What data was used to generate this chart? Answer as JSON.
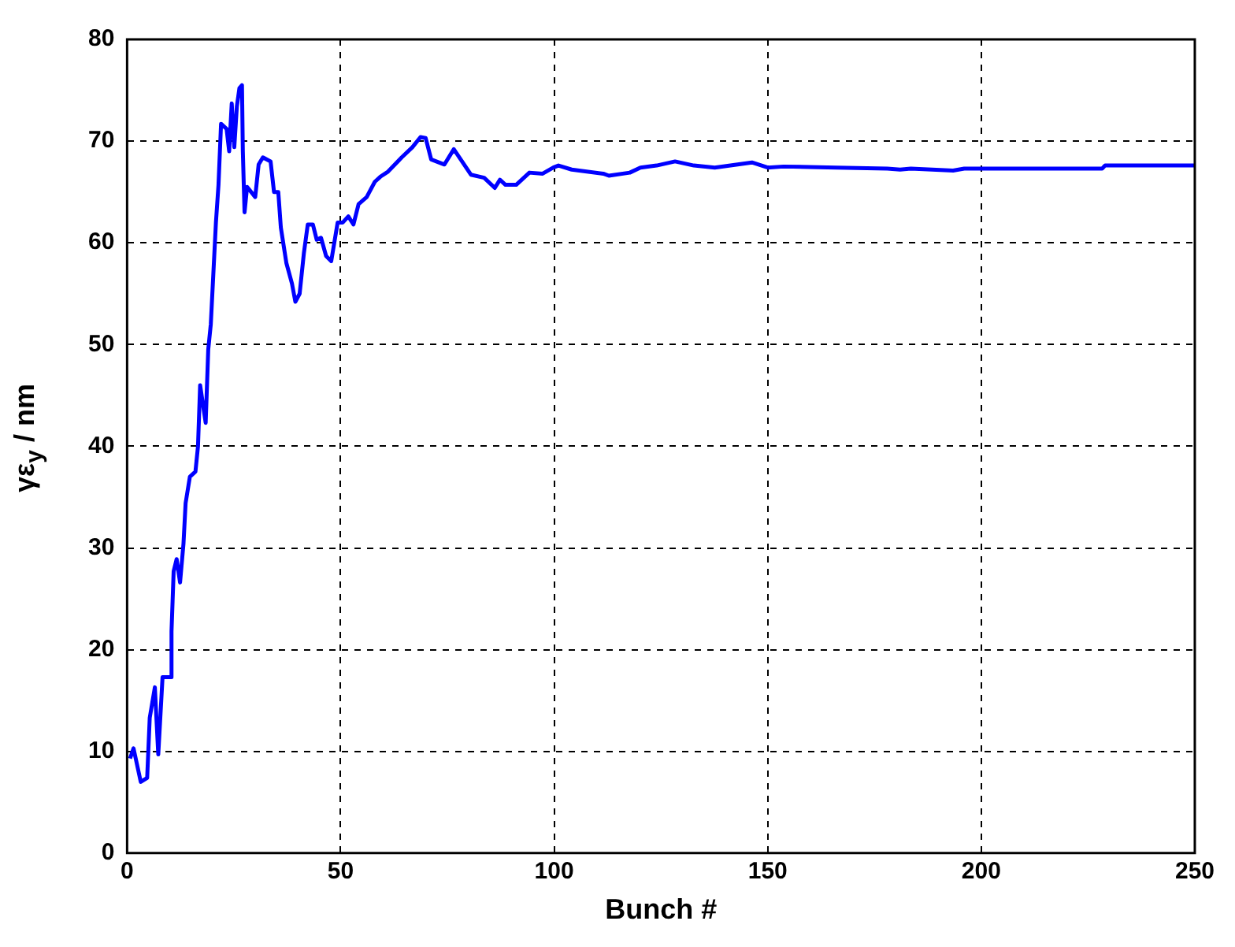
{
  "chart_data": {
    "type": "line",
    "xlabel": "Bunch #",
    "ylabel": "γε$_{y}$ / nm",
    "xlim": [
      0,
      250
    ],
    "xticks": [
      0,
      50,
      100,
      150,
      200,
      250
    ],
    "ylim": [
      0,
      80
    ],
    "yticks": [
      0,
      10,
      20,
      30,
      40,
      50,
      60,
      70,
      80
    ],
    "grid": true,
    "line_style": "solid",
    "marker": "none",
    "series": [
      {
        "color": "#0000ff",
        "x": [
          0.7,
          1.5,
          3.2,
          4.7,
          5.3,
          6.5,
          7.3,
          8.3,
          10.2,
          10.4,
          10.9,
          11.6,
          12.4,
          13.2,
          13.7,
          14.7,
          16,
          16.6,
          17.1,
          18.4,
          19,
          19.6,
          20.2,
          20.8,
          21.4,
          22,
          23.3,
          23.9,
          24.5,
          25.1,
          25.7,
          26.3,
          26.9,
          27.1,
          27.5,
          28.1,
          30,
          30.8,
          31.8,
          33.6,
          34.4,
          35.4,
          36,
          37.3,
          38.6,
          39.4,
          40.4,
          41.4,
          42.3,
          43.5,
          44.4,
          45.4,
          46.6,
          47.8,
          49.3,
          50.5,
          51.8,
          53,
          54.2,
          56.1,
          58,
          59.3,
          61.1,
          64.3,
          66.8,
          68.7,
          69.9,
          71.2,
          74.3,
          76.5,
          80.5,
          83.6,
          86.1,
          87.3,
          88.6,
          91.1,
          94.2,
          97.3,
          99.8,
          101,
          104.1,
          111.5,
          112.8,
          117.7,
          120.2,
          124,
          128.3,
          132.7,
          137.6,
          146.3,
          150,
          153.7,
          166.1,
          178,
          181,
          183.5,
          193.4,
          196,
          228.3,
          229,
          250
        ],
        "values": [
          9.3,
          10.3,
          7.0,
          7.4,
          13.3,
          16.3,
          9.7,
          17.3,
          17.3,
          21.8,
          27.7,
          28.9,
          26.6,
          30.4,
          34.4,
          37,
          37.5,
          40,
          46,
          42.3,
          49.5,
          52,
          57,
          62,
          65.7,
          71.7,
          71.2,
          69,
          73.7,
          69.4,
          73.4,
          75.2,
          75.5,
          69,
          63,
          65.5,
          64.5,
          67.7,
          68.4,
          68,
          65,
          65,
          61.5,
          58,
          56,
          54.2,
          55,
          59,
          61.8,
          61.8,
          60.3,
          60.5,
          58.7,
          58.2,
          62,
          62,
          62.6,
          61.8,
          63.8,
          64.5,
          66,
          66.5,
          67,
          68.4,
          69.4,
          70.4,
          70.3,
          68.2,
          67.7,
          69.2,
          66.7,
          66.4,
          65.4,
          66.2,
          65.7,
          65.7,
          66.9,
          66.8,
          67.4,
          67.6,
          67.2,
          66.8,
          66.6,
          66.9,
          67.4,
          67.6,
          68,
          67.6,
          67.4,
          67.9,
          67.4,
          67.5,
          67.4,
          67.3,
          67.2,
          67.3,
          67.1,
          67.3,
          67.3,
          67.6,
          67.6
        ]
      }
    ]
  }
}
